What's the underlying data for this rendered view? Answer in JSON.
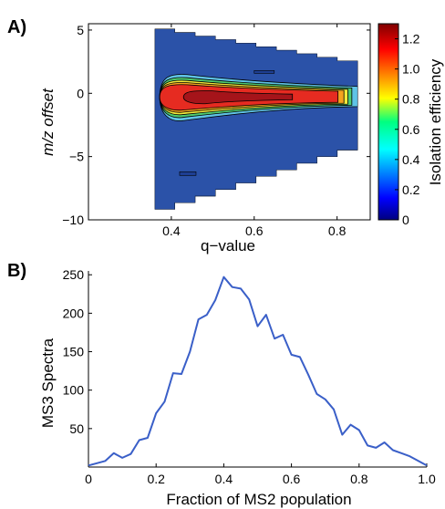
{
  "chart_data": [
    {
      "panel_label": "A)",
      "type": "heatmap",
      "subtype": "filled-contour",
      "xlabel": "q−value",
      "ylabel": "m/z offset",
      "colorbar_label": "Isolation efficiency",
      "xlim": [
        0.2,
        0.88
      ],
      "ylim": [
        -10,
        5.5
      ],
      "xticks": [
        0.4,
        0.6,
        0.8
      ],
      "xtick_labels": [
        "0.4",
        "0.6",
        "0.8"
      ],
      "yticks": [
        5,
        0,
        -5,
        -10
      ],
      "ytick_labels": [
        "5",
        "0",
        "−5",
        "−10"
      ],
      "colorbar_ticks": [
        0,
        0.2,
        0.4,
        0.6,
        0.8,
        1.0,
        1.2
      ],
      "colorbar_tick_labels": [
        "0",
        "0.2",
        "0.4",
        "0.6",
        "0.8",
        "1.0",
        "1.2"
      ],
      "colorbar_range": [
        0,
        1.3
      ],
      "colormap": "jet",
      "data_region": {
        "x_start": 0.36,
        "x_end": 0.85,
        "top_edge": [
          [
            0.36,
            5.1
          ],
          [
            0.85,
            2.3
          ]
        ],
        "bottom_edge": [
          [
            0.36,
            -9.7
          ],
          [
            0.85,
            -4.5
          ]
        ]
      },
      "peak": {
        "x": 0.5,
        "y": -0.3,
        "value": 1.25
      },
      "grid": false,
      "colors": {
        "low": "#2b52a8",
        "mid": "#4ec96f",
        "high": "#d21e1e"
      }
    },
    {
      "panel_label": "B)",
      "type": "line",
      "xlabel": "Fraction of MS2 population",
      "ylabel": "MS3 Spectra",
      "xlim": [
        0,
        1.0
      ],
      "ylim": [
        0,
        255
      ],
      "xticks": [
        0,
        0.2,
        0.4,
        0.6,
        0.8,
        1.0
      ],
      "xtick_labels": [
        "0",
        "0.2",
        "0.4",
        "0.6",
        "0.8",
        "1.0"
      ],
      "yticks": [
        50,
        100,
        150,
        200,
        250
      ],
      "ytick_labels": [
        "50",
        "100",
        "150",
        "200",
        "250"
      ],
      "grid": false,
      "line_color": "#3a5fc8",
      "series": [
        {
          "x": [
            0.0,
            0.025,
            0.05,
            0.075,
            0.1,
            0.125,
            0.15,
            0.175,
            0.2,
            0.225,
            0.25,
            0.275,
            0.3,
            0.325,
            0.35,
            0.375,
            0.4,
            0.425,
            0.45,
            0.475,
            0.5,
            0.525,
            0.55,
            0.575,
            0.6,
            0.625,
            0.65,
            0.675,
            0.7,
            0.725,
            0.75,
            0.775,
            0.8,
            0.825,
            0.85,
            0.875,
            0.9,
            0.925,
            0.95,
            0.975,
            1.0
          ],
          "values": [
            2,
            5,
            8,
            18,
            12,
            17,
            35,
            38,
            70,
            85,
            122,
            121,
            150,
            192,
            198,
            217,
            247,
            234,
            232,
            218,
            183,
            198,
            167,
            172,
            146,
            143,
            120,
            95,
            88,
            75,
            42,
            55,
            48,
            28,
            25,
            32,
            22,
            18,
            14,
            8,
            2
          ]
        }
      ]
    }
  ]
}
